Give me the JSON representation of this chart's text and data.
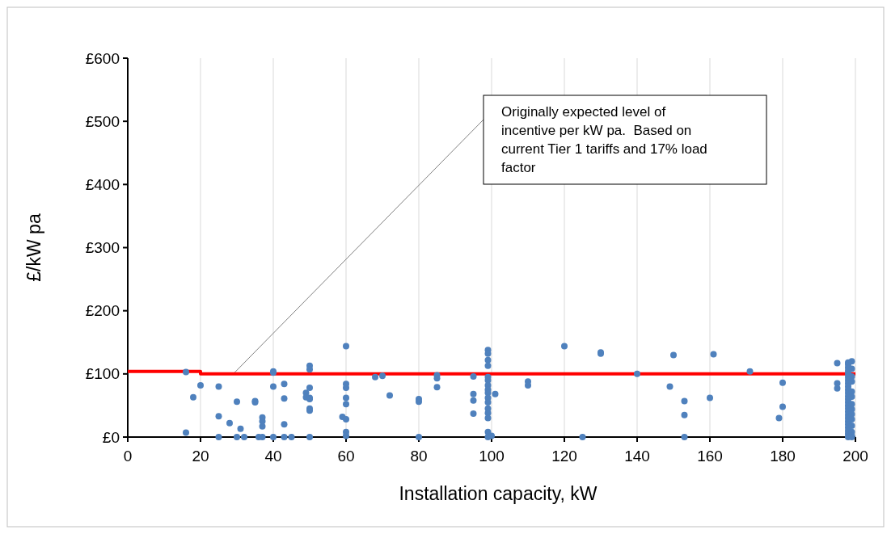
{
  "chart_data": {
    "type": "scatter",
    "xlabel": "Installation capacity, kW",
    "ylabel": "£/kW pa",
    "xlim": [
      0,
      200
    ],
    "xticks": [
      0,
      20,
      40,
      60,
      80,
      100,
      120,
      140,
      160,
      180,
      200
    ],
    "ylim": [
      0,
      600
    ],
    "yticks": [
      {
        "value": 0,
        "label": "£0"
      },
      {
        "value": 100,
        "label": "£100"
      },
      {
        "value": 200,
        "label": "£200"
      },
      {
        "value": 300,
        "label": "£300"
      },
      {
        "value": 400,
        "label": "£400"
      },
      {
        "value": 500,
        "label": "£500"
      },
      {
        "value": 600,
        "label": "£600"
      }
    ],
    "grid": "x",
    "annotations": [
      {
        "text": "Originally expected level of incentive per kW pa.  Based on current Tier 1 tariffs and 17% load factor",
        "x": 29,
        "y": 100
      }
    ],
    "series": [
      {
        "color": "#4f81bd",
        "marker": "circle",
        "x": [
          16,
          16,
          18,
          20,
          25,
          25,
          25,
          28,
          30,
          31,
          30,
          32,
          35,
          35,
          36,
          37,
          37,
          37,
          37,
          40,
          40,
          40,
          40,
          43,
          43,
          43,
          43,
          45,
          49,
          49,
          50,
          50,
          50,
          50,
          50,
          50,
          50,
          50,
          59,
          60,
          60,
          60,
          60,
          60,
          60,
          60,
          60,
          68,
          70,
          72,
          80,
          80,
          80,
          85,
          85,
          85,
          95,
          95,
          95,
          95,
          99,
          99,
          99,
          99,
          99,
          99,
          99,
          99,
          99,
          99,
          99,
          99,
          99,
          99,
          99,
          99,
          100,
          101,
          110,
          110,
          120,
          125,
          130,
          130,
          140,
          149,
          150,
          153,
          153,
          153,
          160,
          161,
          171,
          179,
          180,
          180,
          195,
          195,
          195,
          198,
          198,
          198,
          198,
          198,
          198,
          198,
          198,
          198,
          198,
          198,
          198,
          198,
          198,
          198,
          198,
          198,
          198,
          198,
          198,
          198,
          198,
          198,
          198,
          198,
          199,
          199,
          199,
          199,
          199,
          199,
          199,
          199,
          199,
          199,
          199,
          199,
          199,
          199
        ],
        "values": [
          103,
          7,
          63,
          82,
          80,
          33,
          0,
          22,
          56,
          13,
          0,
          0,
          57,
          55,
          0,
          31,
          25,
          17,
          0,
          104,
          102,
          80,
          0,
          84,
          61,
          20,
          0,
          0,
          70,
          63,
          60,
          113,
          107,
          78,
          62,
          45,
          42,
          0,
          32,
          144,
          84,
          78,
          62,
          52,
          28,
          8,
          2,
          95,
          97,
          66,
          60,
          56,
          0,
          98,
          93,
          79,
          96,
          68,
          58,
          37,
          138,
          132,
          122,
          113,
          95,
          90,
          82,
          75,
          70,
          62,
          55,
          45,
          38,
          30,
          8,
          0,
          2,
          68,
          88,
          82,
          144,
          0,
          134,
          132,
          100,
          80,
          130,
          57,
          35,
          0,
          62,
          131,
          104,
          30,
          86,
          48,
          117,
          85,
          77,
          118,
          115,
          110,
          105,
          100,
          95,
          90,
          85,
          80,
          75,
          70,
          65,
          60,
          55,
          50,
          45,
          40,
          35,
          30,
          25,
          20,
          15,
          10,
          5,
          0,
          120,
          108,
          96,
          88,
          72,
          64,
          52,
          44,
          36,
          28,
          18,
          8,
          2,
          0
        ]
      },
      {
        "type": "line",
        "color": "#ff0000",
        "marker": "none",
        "x": [
          0,
          20,
          20,
          200
        ],
        "values": [
          104,
          104,
          100,
          100
        ]
      }
    ]
  }
}
